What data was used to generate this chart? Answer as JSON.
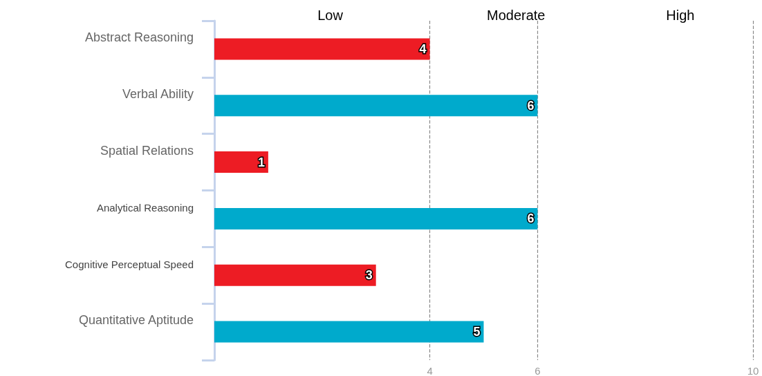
{
  "chart_data": {
    "type": "bar",
    "orientation": "horizontal",
    "categories": [
      "Abstract Reasoning",
      "Verbal Ability",
      "Spatial Relations",
      "Analytical Reasoning",
      "Cognitive Perceptual Speed",
      "Quantitative Aptitude"
    ],
    "values": [
      4,
      6,
      1,
      6,
      3,
      5
    ],
    "colors": [
      "#ed1c24",
      "#00aacc",
      "#ed1c24",
      "#00aacc",
      "#ed1c24",
      "#00aacc"
    ],
    "xlim": [
      0,
      10
    ],
    "xticks": [
      4,
      6,
      10
    ],
    "grid": "x",
    "data_labels": true,
    "annotations": [
      "Low",
      "Moderate",
      "High"
    ]
  }
}
